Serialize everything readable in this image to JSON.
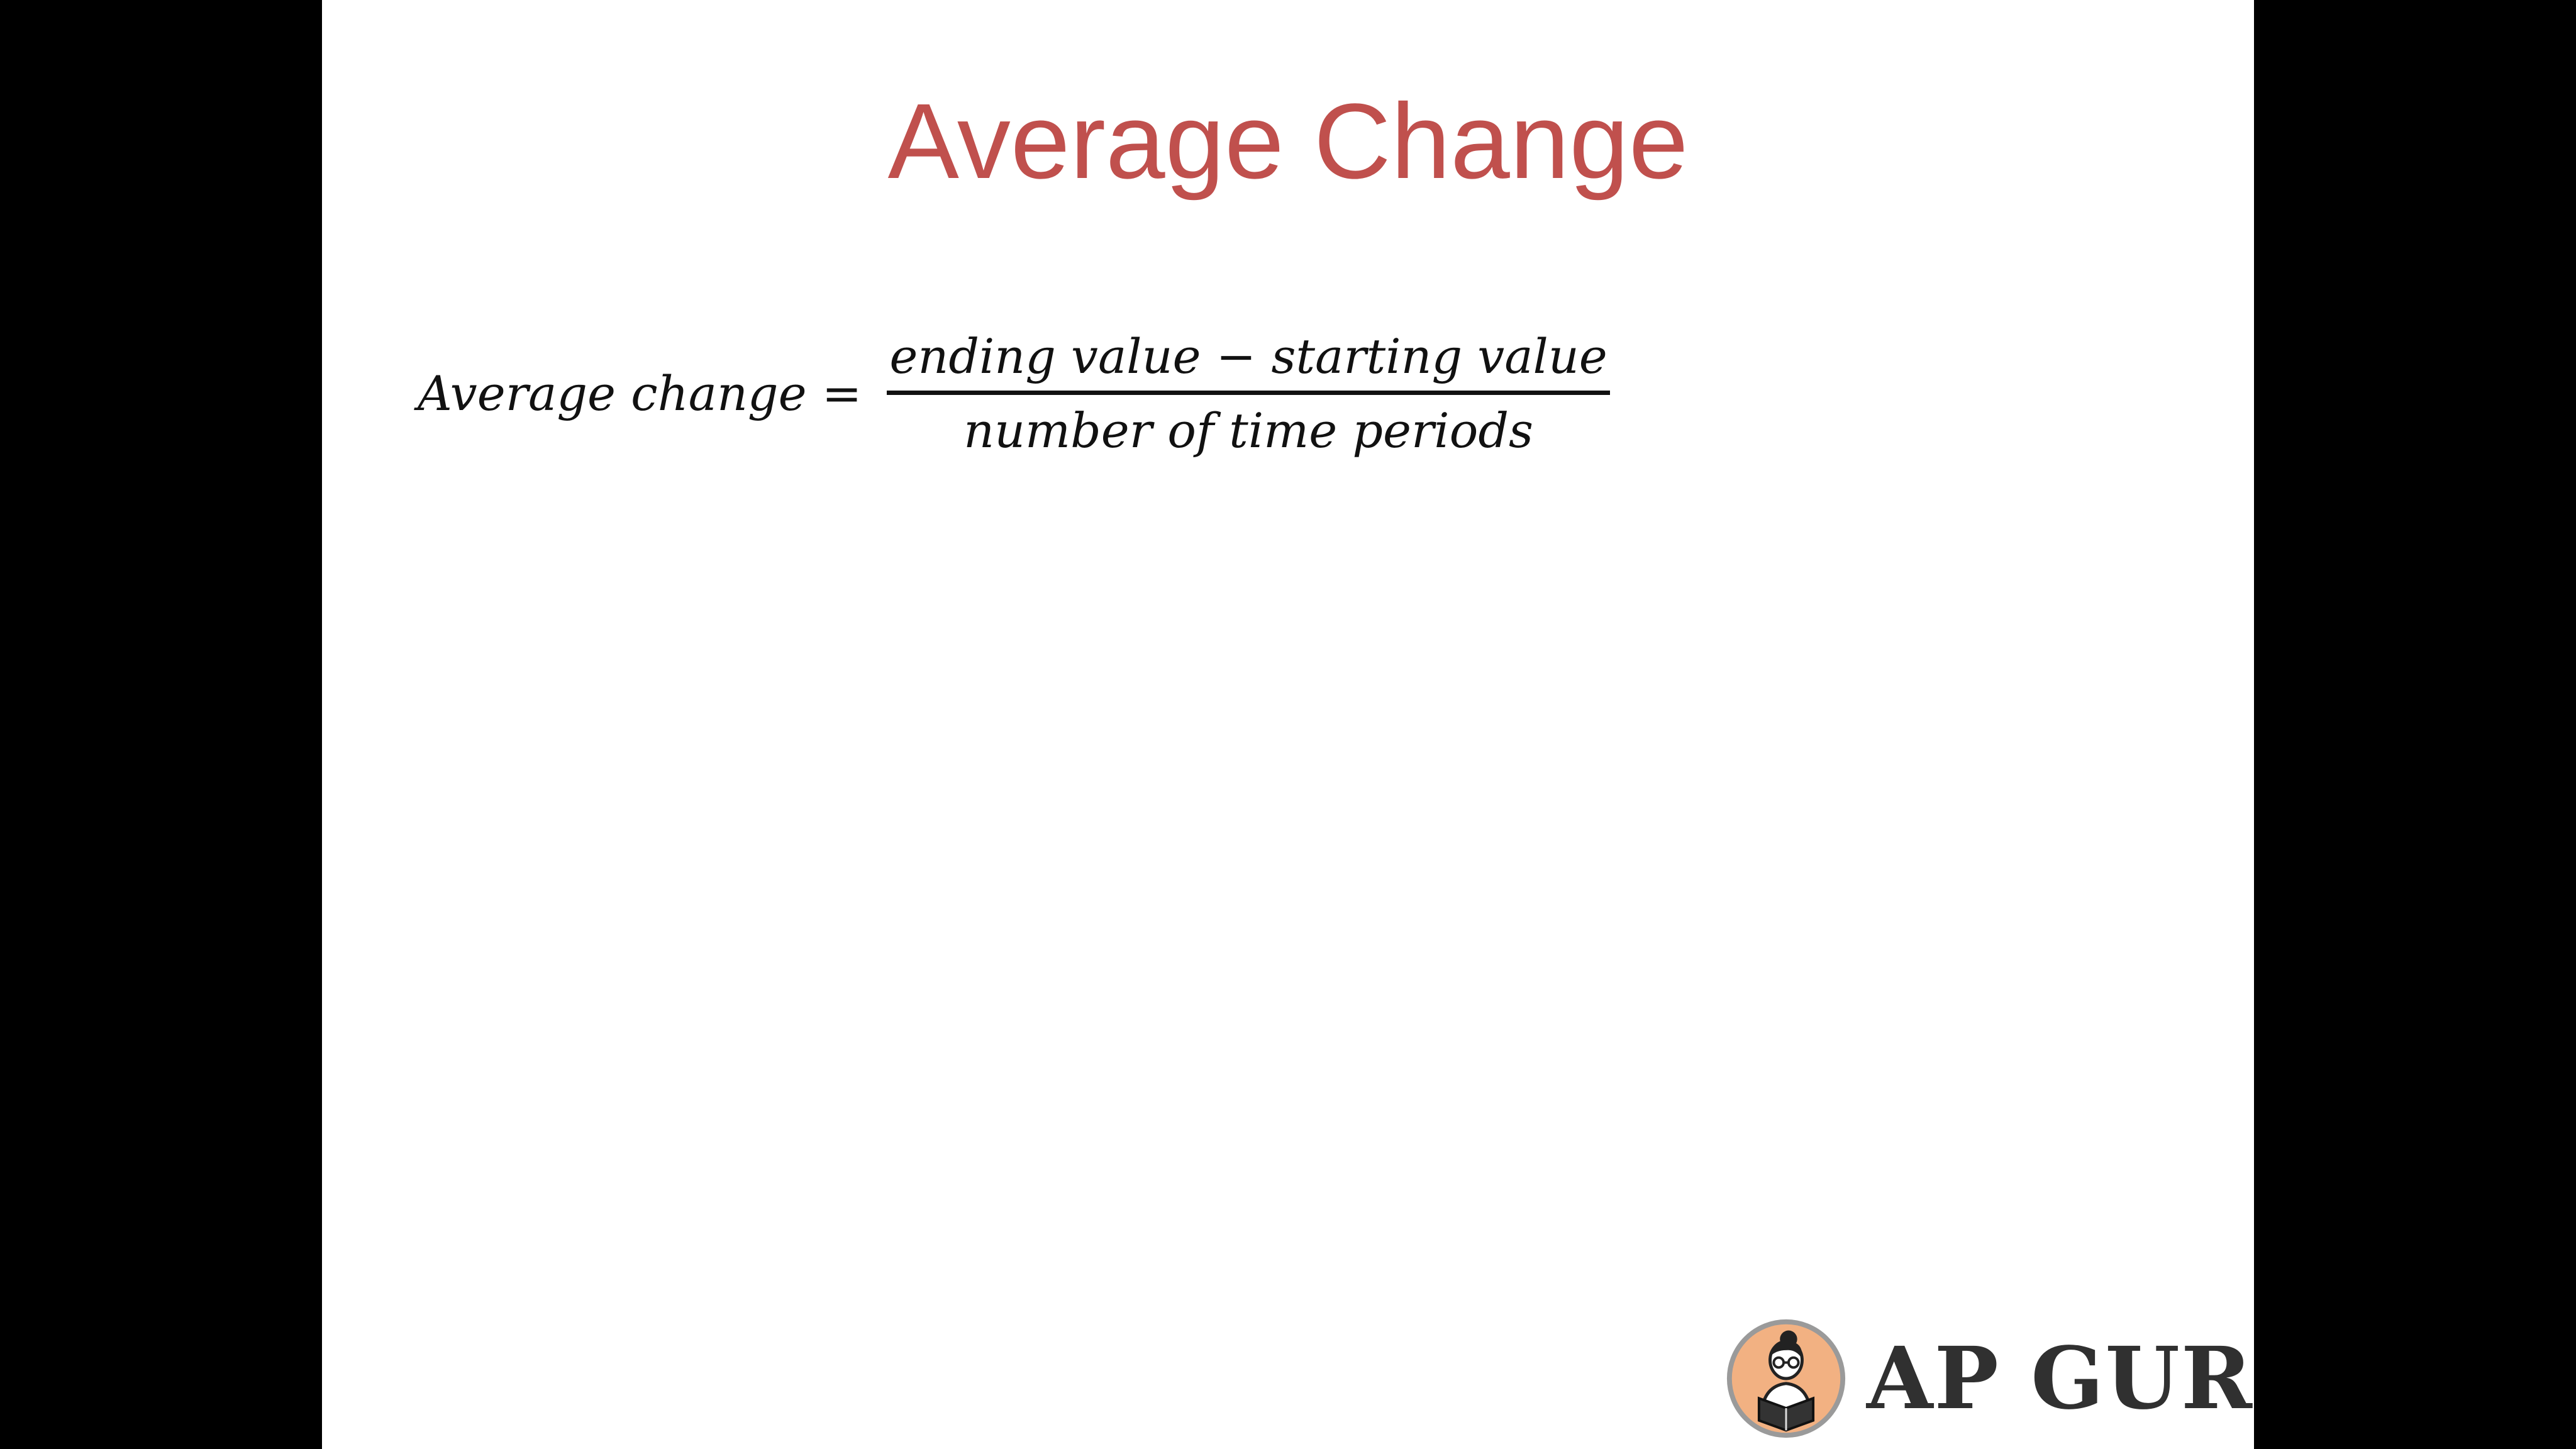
{
  "slide": {
    "title": "Average Change",
    "formula": {
      "lhs": "Average change =",
      "numerator": "ending value − starting value",
      "denominator": "number of time periods"
    },
    "logo": {
      "text": "AP GURU",
      "icon": "reading-person-badge-icon"
    }
  },
  "colors": {
    "title": "#c0504d",
    "background": "#ffffff",
    "letterbox": "#000000",
    "logo_text": "#303030",
    "logo_badge": "#f2b182"
  }
}
